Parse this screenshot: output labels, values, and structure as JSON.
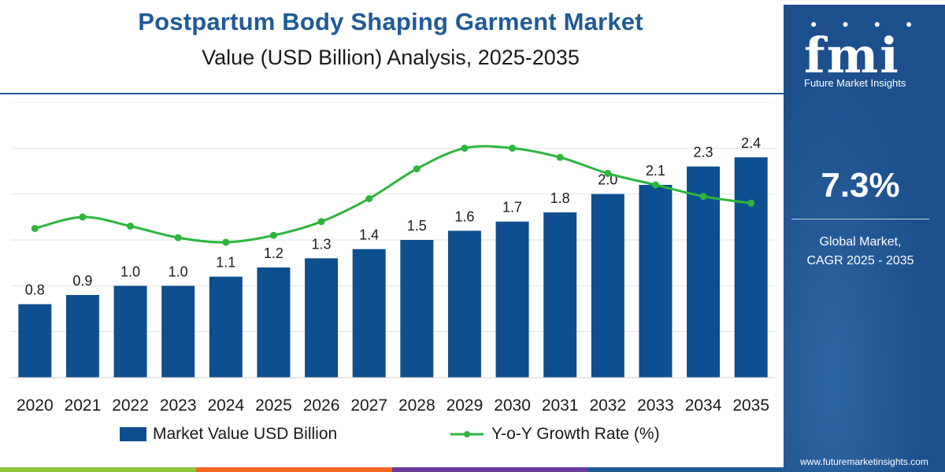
{
  "title": "Postpartum Body Shaping Garment Market",
  "subtitle": "Value (USD Billion) Analysis, 2025-2035",
  "colors": {
    "bar": "#0e4f8f",
    "line": "#2db53c",
    "title": "#1f5a96",
    "sidebar": "#1c4f8c",
    "strip": [
      "#8dc63f",
      "#f26522",
      "#6a3d9a",
      "#1f5a96"
    ]
  },
  "legend": {
    "bar_label": "Market Value USD Billion",
    "line_label": "Y-o-Y Growth Rate (%)"
  },
  "sidebar": {
    "logo_text": "fmi",
    "logo_subtext": "Future Market Insights",
    "cagr_value": "7.3%",
    "cagr_label_line1": "Global Market,",
    "cagr_label_line2": "CAGR 2025 - 2035",
    "website": "www.futuremarketinsights.com"
  },
  "chart_data": {
    "type": "bar",
    "categories": [
      "2020",
      "2021",
      "2022",
      "2023",
      "2024",
      "2025",
      "2026",
      "2027",
      "2028",
      "2029",
      "2030",
      "2031",
      "2032",
      "2033",
      "2034",
      "2035"
    ],
    "series": [
      {
        "name": "Market Value USD Billion",
        "type": "bar",
        "values": [
          0.8,
          0.9,
          1.0,
          1.0,
          1.1,
          1.2,
          1.3,
          1.4,
          1.5,
          1.6,
          1.7,
          1.8,
          2.0,
          2.1,
          2.3,
          2.4
        ],
        "labels": [
          "0.8",
          "0.9",
          "1.0",
          "1.0",
          "1.1",
          "1.2",
          "1.3",
          "1.4",
          "1.5",
          "1.6",
          "1.7",
          "1.8",
          "2.0",
          "2.1",
          "2.3",
          "2.4"
        ]
      },
      {
        "name": "Y-o-Y Growth Rate (%)",
        "type": "line",
        "values": [
          6.5,
          7.0,
          6.6,
          6.1,
          5.9,
          6.2,
          6.8,
          7.8,
          9.1,
          10.0,
          10.0,
          9.6,
          8.9,
          8.4,
          7.9,
          7.6
        ]
      }
    ],
    "ylim": [
      0,
      3.0
    ],
    "y2lim": [
      0,
      12
    ],
    "grid": true,
    "legend": "bottom"
  }
}
